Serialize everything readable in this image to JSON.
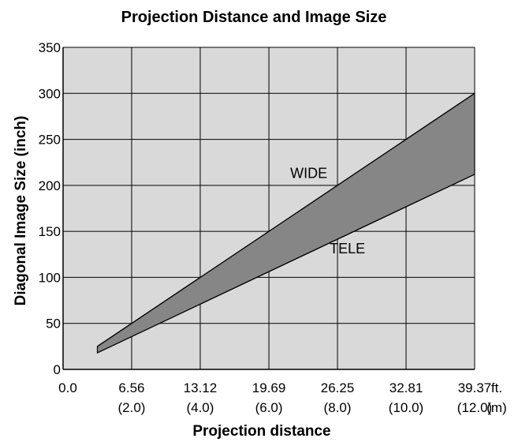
{
  "chart_data": {
    "type": "area",
    "title": "Projection Distance and Image Size",
    "xlabel": "Projection distance",
    "ylabel": "Diagonal Image Size (inch)",
    "x_unit_primary": "ft.",
    "x_unit_secondary": "(m)",
    "x_origin_label": "0.0",
    "x_ticks_ft": [
      "6.56",
      "13.12",
      "19.69",
      "26.25",
      "32.81",
      "39.37"
    ],
    "x_ticks_m": [
      "(2.0)",
      "(4.0)",
      "(6.0)",
      "(8.0)",
      "(10.0)",
      "(12.0)"
    ],
    "x_tick_values_ft": [
      6.56,
      13.12,
      19.69,
      26.25,
      32.81,
      39.37
    ],
    "xlim_ft": [
      0,
      39.37
    ],
    "y_ticks": [
      "0",
      "50",
      "100",
      "150",
      "200",
      "250",
      "300",
      "350"
    ],
    "y_tick_values": [
      0,
      50,
      100,
      150,
      200,
      250,
      300,
      350
    ],
    "ylim": [
      0,
      350
    ],
    "grid": true,
    "series": [
      {
        "name": "WIDE",
        "x": [
          3.28,
          39.37
        ],
        "y": [
          25,
          300
        ]
      },
      {
        "name": "TELE",
        "x": [
          3.28,
          39.37
        ],
        "y": [
          18,
          212
        ]
      }
    ],
    "annotations": [
      {
        "text": "WIDE",
        "x": 23.5,
        "y": 208
      },
      {
        "text": "TELE",
        "x": 27.2,
        "y": 126
      }
    ],
    "colors": {
      "plot_background": "#d9d9d9",
      "band_fill": "#868686",
      "line": "#000000"
    }
  }
}
